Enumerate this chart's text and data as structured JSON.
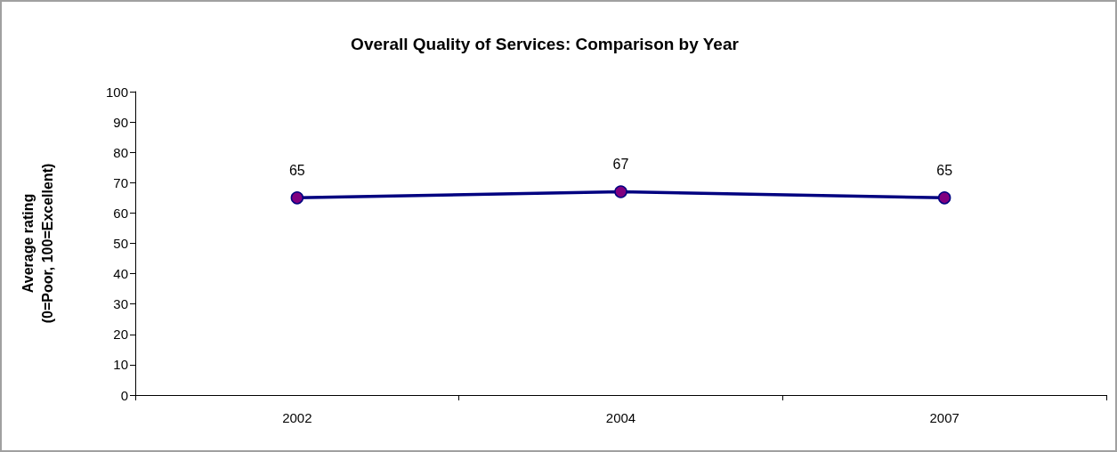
{
  "chart_data": {
    "type": "line",
    "title": "Overall Quality of Services: Comparison by Year",
    "ylabel": "Average rating\n(0=Poor, 100=Excellent)",
    "categories": [
      "2002",
      "2004",
      "2007"
    ],
    "series": [
      {
        "color": "#000080",
        "colors": [
          "#800080",
          "#800080",
          "#800080"
        ],
        "values": [
          65,
          67,
          65
        ]
      }
    ],
    "ylim": [
      0,
      100
    ],
    "yticks": [
      0,
      10,
      20,
      30,
      40,
      50,
      60,
      70,
      80,
      90,
      100
    ],
    "grid": false,
    "marker": "circle",
    "line_style": "solid",
    "data_labels": true
  }
}
